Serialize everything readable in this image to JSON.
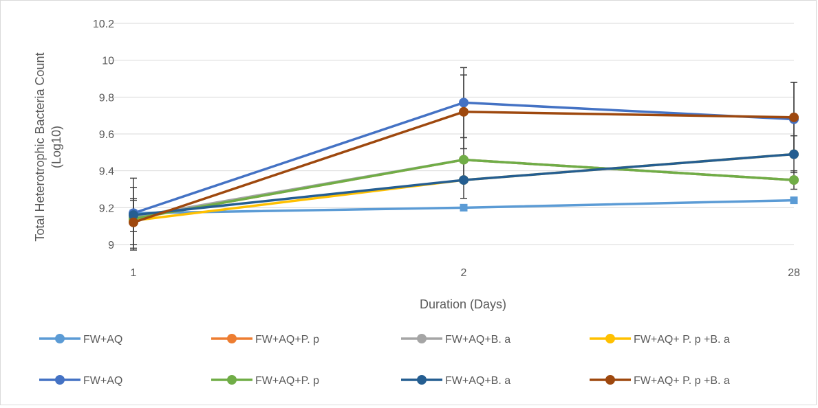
{
  "chart_data": {
    "type": "line",
    "xlabel": "Duration (Days)",
    "ylabel_line1": "Total Heterotrophic Bacteria Count",
    "ylabel_line2": "(Log10)",
    "categories": [
      "1",
      "2",
      "28"
    ],
    "ylim": [
      9,
      10.2
    ],
    "yticks": [
      "9",
      "9.2",
      "9.4",
      "9.6",
      "9.8",
      "10",
      "10.2"
    ],
    "grid": true,
    "legend_position": "bottom",
    "series": [
      {
        "name": "FW+AQ",
        "color": "#5b9bd5",
        "marker": "square",
        "values": [
          9.17,
          9.2,
          9.24
        ],
        "error": [
          0,
          0,
          0
        ]
      },
      {
        "name": "FW+AQ+P. p",
        "color": "#ed7d31",
        "marker": "circle",
        "values": [
          9.14,
          9.46,
          9.35
        ],
        "error": [
          0,
          0,
          0
        ]
      },
      {
        "name": "FW+AQ+B. a",
        "color": "#a5a5a5",
        "marker": "circle",
        "values": [
          9.15,
          9.46,
          9.35
        ],
        "error": [
          0,
          0,
          0
        ]
      },
      {
        "name": "FW+AQ+ P. p +B. a",
        "color": "#ffc000",
        "marker": "circle",
        "values": [
          9.13,
          9.35,
          9.49
        ],
        "error": [
          0,
          0,
          0
        ]
      },
      {
        "name": "FW+AQ",
        "color": "#4472c4",
        "marker": "circle",
        "values": [
          9.17,
          9.77,
          9.68
        ],
        "error": [
          0.19,
          0.19,
          0.2
        ]
      },
      {
        "name": "FW+AQ+P. p",
        "color": "#70ad47",
        "marker": "circle",
        "values": [
          9.14,
          9.46,
          9.35
        ],
        "error": [
          0.17,
          0.12,
          0.05
        ]
      },
      {
        "name": "FW+AQ+B. a",
        "color": "#255e91",
        "marker": "circle",
        "values": [
          9.16,
          9.35,
          9.49
        ],
        "error": [
          0.09,
          0.1,
          0.1
        ]
      },
      {
        "name": "FW+AQ+ P. p +B. a",
        "color": "#9e480e",
        "marker": "circle",
        "values": [
          9.12,
          9.72,
          9.69
        ],
        "error": [
          0.12,
          0.2,
          0.19
        ]
      }
    ]
  }
}
